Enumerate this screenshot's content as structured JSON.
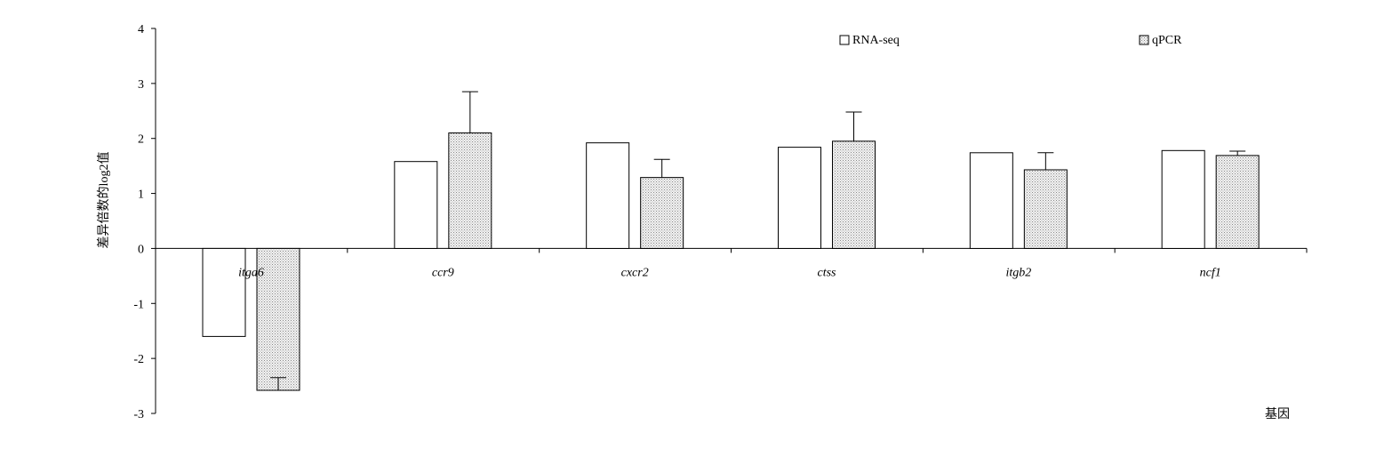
{
  "chart_data": {
    "type": "bar",
    "categories": [
      "itga6",
      "ccr9",
      "cxcr2",
      "ctss",
      "itgb2",
      "ncf1"
    ],
    "series": [
      {
        "name": "RNA-seq",
        "values": [
          -1.6,
          1.58,
          1.92,
          1.84,
          1.74,
          1.78
        ],
        "errors": [
          null,
          null,
          null,
          null,
          null,
          null
        ],
        "pattern": "hollow"
      },
      {
        "name": "qPCR",
        "values": [
          -2.58,
          2.1,
          1.29,
          1.95,
          1.43,
          1.69
        ],
        "errors": [
          0.23,
          0.75,
          0.33,
          0.53,
          0.31,
          0.08
        ],
        "pattern": "dotted"
      }
    ],
    "ylabel": "差异倍数的log2值",
    "xlabel": "基因",
    "ylim": [
      -3,
      4
    ],
    "yticks": [
      4,
      3,
      2,
      1,
      0,
      -1,
      -2,
      -3
    ],
    "grid": false,
    "legend_position": "top-right"
  }
}
